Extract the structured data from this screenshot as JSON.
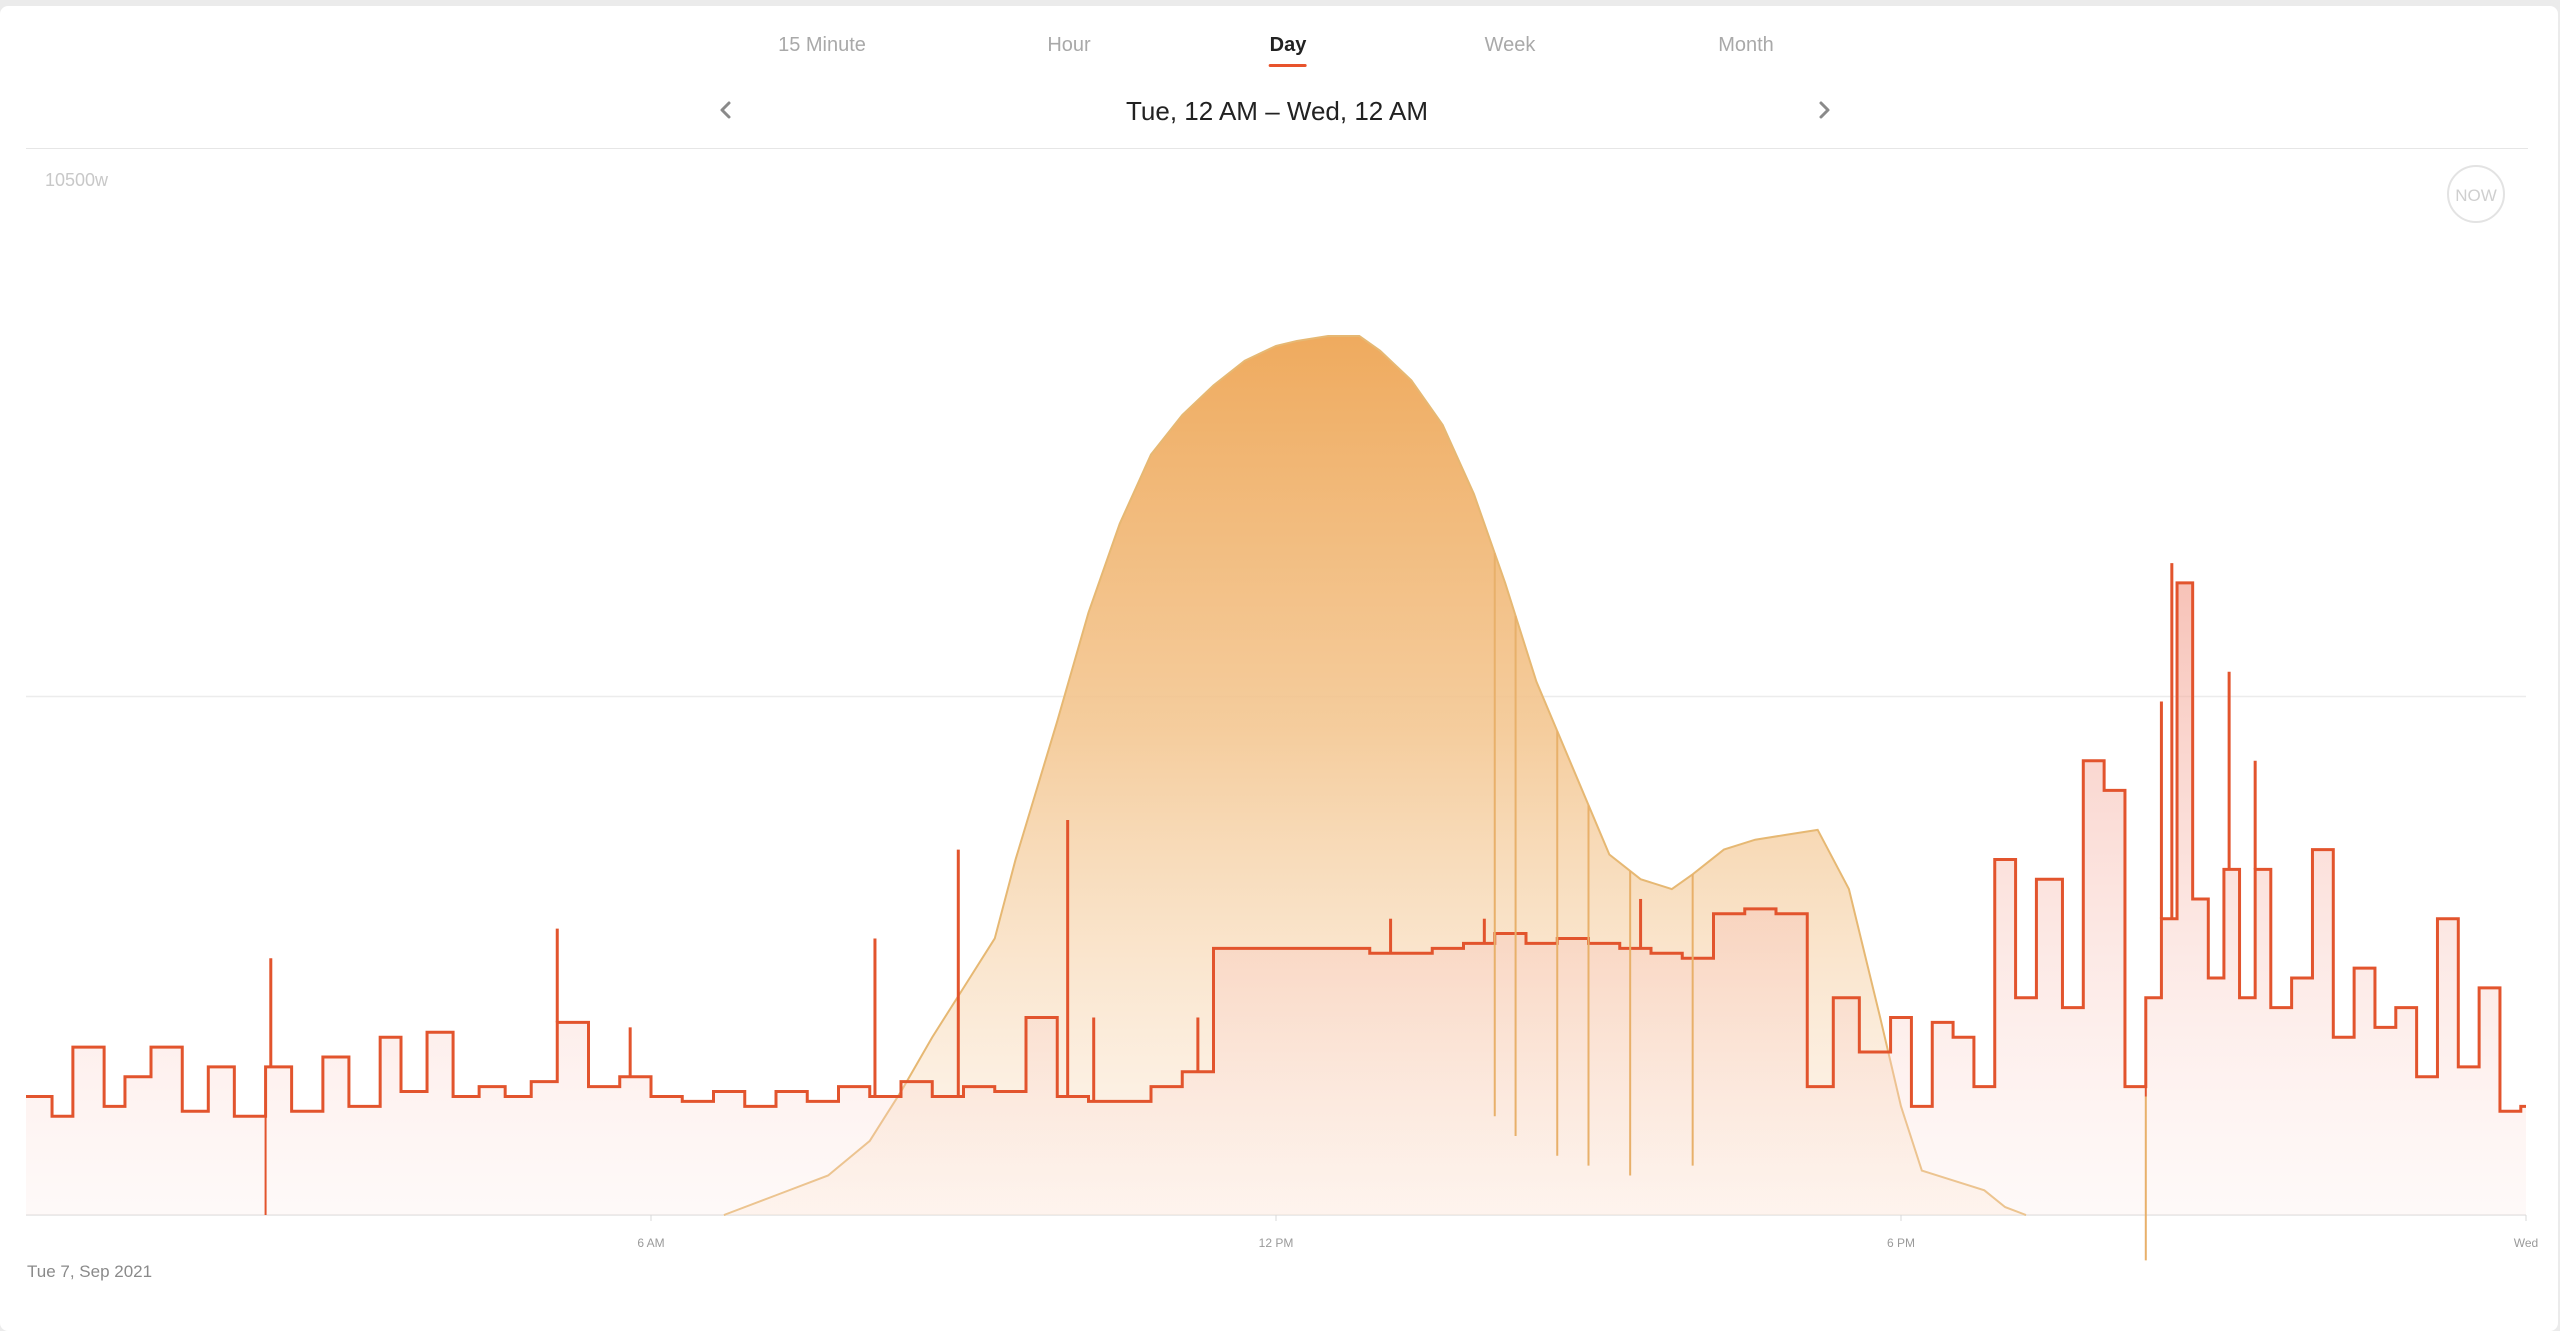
{
  "tabs": {
    "items": [
      {
        "label": "15 Minute",
        "active": false
      },
      {
        "label": "Hour",
        "active": false
      },
      {
        "label": "Day",
        "active": true
      },
      {
        "label": "Week",
        "active": false
      },
      {
        "label": "Month",
        "active": false
      }
    ]
  },
  "nav": {
    "date_range": "Tue, 12 AM – Wed, 12 AM",
    "prev_icon": "chevron-left-icon",
    "next_icon": "chevron-right-icon"
  },
  "now_button": {
    "label": "NOW"
  },
  "footer": {
    "date": "Tue 7, Sep 2021"
  },
  "colors": {
    "accent": "#e8532c",
    "consumption_line": "#e2542d",
    "consumption_fill": "#f5b8a8",
    "solar_fill": "#efaa5a",
    "solar_line": "#e6b873"
  },
  "chart_data": {
    "type": "area",
    "title": "",
    "xlabel": "",
    "ylabel": "",
    "x_ticks": [
      "6 AM",
      "12 PM",
      "6 PM",
      "Wed"
    ],
    "xlim": [
      0,
      24
    ],
    "ylim": [
      0,
      10500
    ],
    "y_tick_labels": [
      {
        "value": 10500,
        "label": "10500w"
      }
    ],
    "grid": true,
    "series": [
      {
        "key": "solar",
        "x": [
          6.7,
          7.2,
          7.7,
          8.1,
          8.4,
          8.7,
          9.0,
          9.3,
          9.5,
          9.9,
          10.2,
          10.5,
          10.8,
          11.1,
          11.4,
          11.7,
          12.0,
          12.2,
          12.5,
          12.8,
          13.0,
          13.3,
          13.6,
          13.9,
          14.2,
          14.5,
          14.9,
          15.2,
          15.5,
          15.8,
          16.0,
          16.3,
          16.6,
          16.9,
          17.2,
          17.5,
          17.8,
          18.0,
          18.2,
          18.5,
          18.8,
          19.0,
          19.2
        ],
        "y": [
          0,
          200,
          400,
          750,
          1250,
          1800,
          2300,
          2800,
          3600,
          5000,
          6100,
          7000,
          7700,
          8100,
          8400,
          8650,
          8800,
          8850,
          8900,
          8900,
          8750,
          8450,
          8000,
          7300,
          6400,
          5400,
          4400,
          3650,
          3400,
          3300,
          3450,
          3700,
          3800,
          3850,
          3900,
          3300,
          2000,
          1100,
          450,
          350,
          250,
          80,
          0
        ]
      },
      {
        "key": "consumption",
        "x": [
          0.0,
          0.25,
          0.45,
          0.75,
          0.95,
          1.2,
          1.5,
          1.75,
          2.0,
          2.3,
          2.55,
          2.85,
          3.1,
          3.4,
          3.6,
          3.85,
          4.1,
          4.35,
          4.6,
          4.85,
          5.1,
          5.4,
          5.7,
          6.0,
          6.3,
          6.6,
          6.9,
          7.2,
          7.5,
          7.8,
          8.1,
          8.4,
          8.7,
          9.0,
          9.3,
          9.6,
          9.9,
          10.2,
          10.5,
          10.8,
          11.1,
          11.4,
          11.7,
          12.0,
          12.3,
          12.6,
          12.9,
          13.2,
          13.5,
          13.8,
          14.1,
          14.4,
          14.7,
          15.0,
          15.3,
          15.6,
          15.9,
          16.2,
          16.5,
          16.8,
          17.1,
          17.35,
          17.6,
          17.9,
          18.1,
          18.3,
          18.5,
          18.7,
          18.9,
          19.1,
          19.3,
          19.55,
          19.75,
          19.95,
          20.15,
          20.35,
          20.5,
          20.65,
          20.8,
          20.95,
          21.1,
          21.25,
          21.4,
          21.55,
          21.75,
          21.95,
          22.15,
          22.35,
          22.55,
          22.75,
          22.95,
          23.15,
          23.35,
          23.55,
          23.75,
          23.95
        ],
        "y": [
          1200,
          1000,
          1700,
          1100,
          1400,
          1700,
          1050,
          1500,
          1000,
          1500,
          1050,
          1600,
          1100,
          1800,
          1250,
          1850,
          1200,
          1300,
          1200,
          1350,
          1950,
          1300,
          1400,
          1200,
          1150,
          1250,
          1100,
          1250,
          1150,
          1300,
          1200,
          1350,
          1200,
          1300,
          1250,
          2000,
          1200,
          1150,
          1150,
          1300,
          1450,
          2700,
          2700,
          2700,
          2700,
          2700,
          2650,
          2650,
          2700,
          2750,
          2850,
          2750,
          2800,
          2750,
          2700,
          2650,
          2600,
          3050,
          3100,
          3050,
          1300,
          2200,
          1650,
          2000,
          1100,
          1950,
          1800,
          1300,
          3600,
          2200,
          3400,
          2100,
          4600,
          4300,
          1300,
          2200,
          3000,
          6400,
          3200,
          2400,
          3500,
          2200,
          3500,
          2100,
          2400,
          3700,
          1800,
          2500,
          1900,
          2100,
          1400,
          3000,
          1500,
          2300,
          1050,
          1100
        ]
      }
    ],
    "spikes": [
      {
        "x": 2.35,
        "y": 2600
      },
      {
        "x": 5.1,
        "y": 2900
      },
      {
        "x": 5.8,
        "y": 1900
      },
      {
        "x": 8.15,
        "y": 2800
      },
      {
        "x": 8.95,
        "y": 3700
      },
      {
        "x": 10.0,
        "y": 4000
      },
      {
        "x": 10.25,
        "y": 2000
      },
      {
        "x": 11.25,
        "y": 2000
      },
      {
        "x": 13.1,
        "y": 3000
      },
      {
        "x": 14.0,
        "y": 3000
      },
      {
        "x": 15.5,
        "y": 3200
      },
      {
        "x": 20.5,
        "y": 5200
      },
      {
        "x": 20.6,
        "y": 6600
      },
      {
        "x": 21.15,
        "y": 5500
      },
      {
        "x": 21.4,
        "y": 4600
      }
    ],
    "dips": [
      {
        "x": 2.3,
        "y": 0
      },
      {
        "x": 14.1,
        "y": 1000
      },
      {
        "x": 14.3,
        "y": 800
      },
      {
        "x": 14.7,
        "y": 600
      },
      {
        "x": 15.0,
        "y": 500
      },
      {
        "x": 15.4,
        "y": 400
      },
      {
        "x": 16.0,
        "y": 500
      },
      {
        "x": 20.35,
        "y": 1200
      }
    ]
  }
}
